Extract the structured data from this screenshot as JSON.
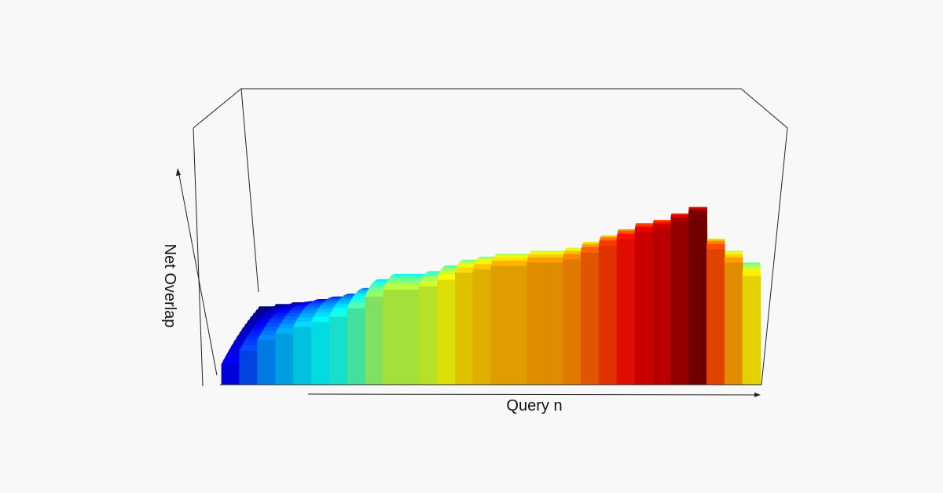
{
  "chart_data": {
    "type": "3d-bar-surface",
    "title": "",
    "xlabel": "Query n",
    "ylabel": "",
    "zlabel": "Net Overlap",
    "colormap": [
      "#00007f",
      "#0000ff",
      "#007fff",
      "#00ffff",
      "#7fff7f",
      "#ffff00",
      "#ff7f00",
      "#ff0000",
      "#7f0000"
    ],
    "zlim": [
      0,
      1
    ],
    "grid": false,
    "legend": "none",
    "ridge": [
      0.12,
      0.2,
      0.26,
      0.3,
      0.34,
      0.37,
      0.4,
      0.45,
      0.52,
      0.56,
      0.56,
      0.58,
      0.62,
      0.66,
      0.68,
      0.7,
      0.7,
      0.72,
      0.72,
      0.74,
      0.78,
      0.82,
      0.86,
      0.9,
      0.92,
      0.96,
      1.0,
      0.8,
      0.72,
      0.64
    ],
    "depth_factors": [
      1.0,
      0.93,
      0.86,
      0.79,
      0.72,
      0.65,
      0.58,
      0.51,
      0.44,
      0.37,
      0.3,
      0.23,
      0.16,
      0.1
    ]
  }
}
